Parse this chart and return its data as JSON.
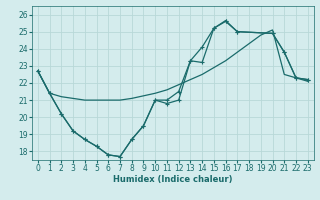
{
  "xlabel": "Humidex (Indice chaleur)",
  "bg_color": "#d4eced",
  "grid_color": "#b8d8d8",
  "line_color": "#1a6b6b",
  "xlim": [
    -0.5,
    23.5
  ],
  "ylim": [
    17.5,
    26.5
  ],
  "xticks": [
    0,
    1,
    2,
    3,
    4,
    5,
    6,
    7,
    8,
    9,
    10,
    11,
    12,
    13,
    14,
    15,
    16,
    17,
    18,
    19,
    20,
    21,
    22,
    23
  ],
  "yticks": [
    18,
    19,
    20,
    21,
    22,
    23,
    24,
    25,
    26
  ],
  "line_zigzag_x": [
    0,
    1,
    2,
    3,
    4,
    5,
    6,
    7,
    8,
    9,
    10,
    11,
    12,
    13,
    14,
    15,
    16,
    17,
    20,
    21,
    22,
    23
  ],
  "line_zigzag_y": [
    22.7,
    21.4,
    20.2,
    19.2,
    18.7,
    18.3,
    17.8,
    17.7,
    18.7,
    19.5,
    21.0,
    20.8,
    21.0,
    23.3,
    23.2,
    25.2,
    25.6,
    25.0,
    24.9,
    23.8,
    22.3,
    22.2
  ],
  "line_upper_x": [
    0,
    1,
    2,
    3,
    4,
    5,
    6,
    7,
    8,
    9,
    10,
    11,
    12,
    13,
    14,
    15,
    16,
    17,
    20,
    21,
    22,
    23
  ],
  "line_upper_y": [
    22.7,
    21.4,
    20.2,
    19.2,
    18.7,
    18.3,
    17.8,
    17.7,
    18.7,
    19.5,
    21.0,
    21.0,
    21.5,
    23.3,
    24.1,
    25.2,
    25.65,
    25.0,
    24.9,
    23.8,
    22.3,
    22.2
  ],
  "line_trend_x": [
    0,
    1,
    2,
    3,
    4,
    5,
    6,
    7,
    8,
    9,
    10,
    11,
    12,
    13,
    14,
    15,
    16,
    17,
    18,
    19,
    20,
    21,
    22,
    23
  ],
  "line_trend_y": [
    22.7,
    21.4,
    21.2,
    21.1,
    21.0,
    21.0,
    21.0,
    21.0,
    21.1,
    21.25,
    21.4,
    21.6,
    21.9,
    22.2,
    22.5,
    22.9,
    23.3,
    23.8,
    24.3,
    24.8,
    25.1,
    22.5,
    22.3,
    22.1
  ]
}
